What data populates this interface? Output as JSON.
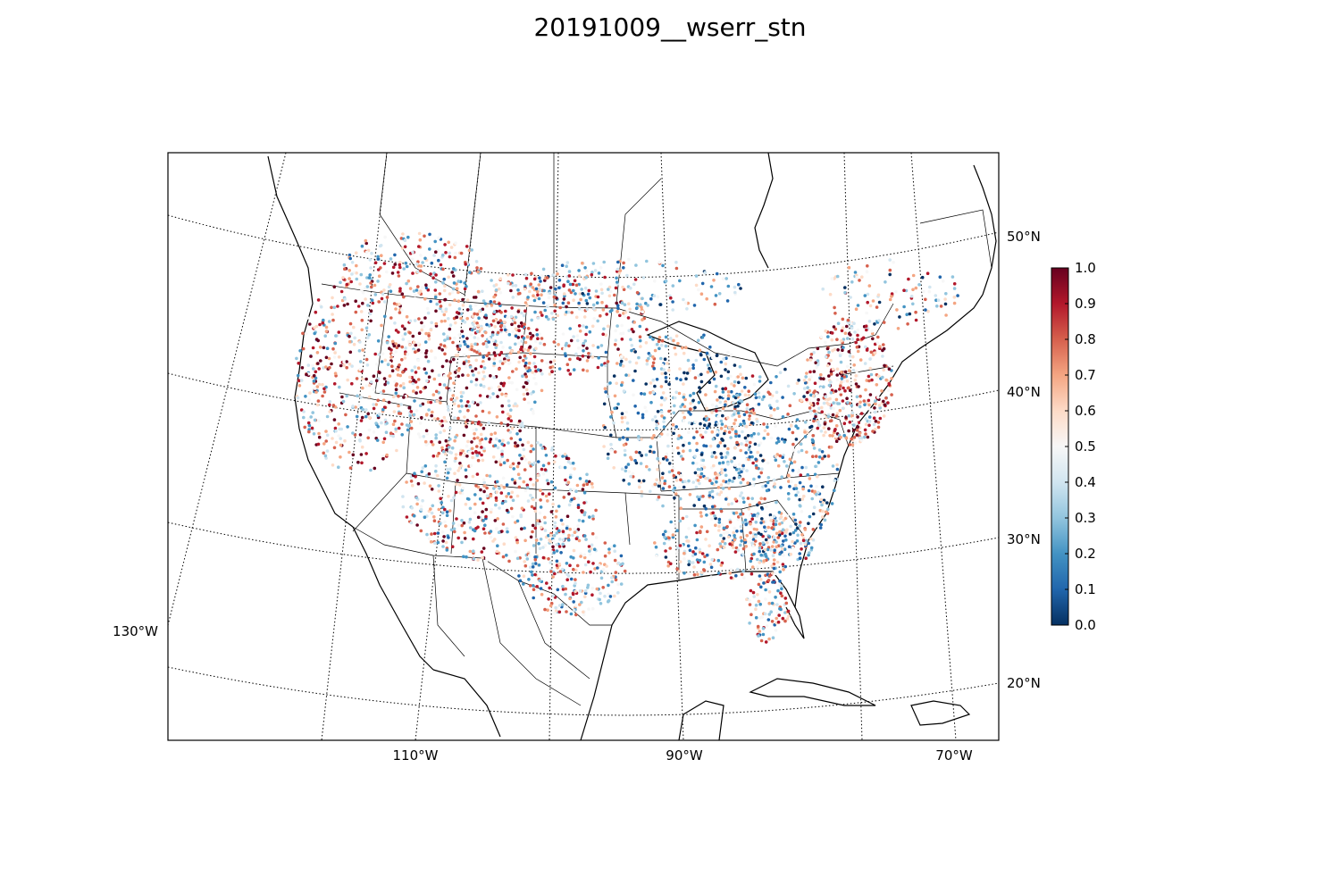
{
  "title": "20191009__wserr_stn",
  "map": {
    "projection": "lambert-conformal",
    "graticule_style": "dotted",
    "lat_labels": [
      "50°N",
      "40°N",
      "30°N",
      "20°N"
    ],
    "lon_labels": [
      "130°W",
      "110°W",
      "90°W",
      "70°W"
    ],
    "colormap": "RdBu_r",
    "colors": [
      "#053061",
      "#2166ac",
      "#4393c3",
      "#92c5de",
      "#d1e5f0",
      "#f7f7f7",
      "#fddbc7",
      "#f4a582",
      "#d6604d",
      "#b2182b",
      "#67001f"
    ],
    "point_summary": {
      "west": "mixed, many high (red) values",
      "great_lakes_midwest": "mostly low-to-mid (blue/white) values",
      "northeast_corridor": "high (dark red) values",
      "southeast": "mixed"
    }
  },
  "colorbar": {
    "min": 0.0,
    "max": 1.0,
    "ticks": [
      "0.0",
      "0.1",
      "0.2",
      "0.3",
      "0.4",
      "0.5",
      "0.6",
      "0.7",
      "0.8",
      "0.9",
      "1.0"
    ]
  }
}
